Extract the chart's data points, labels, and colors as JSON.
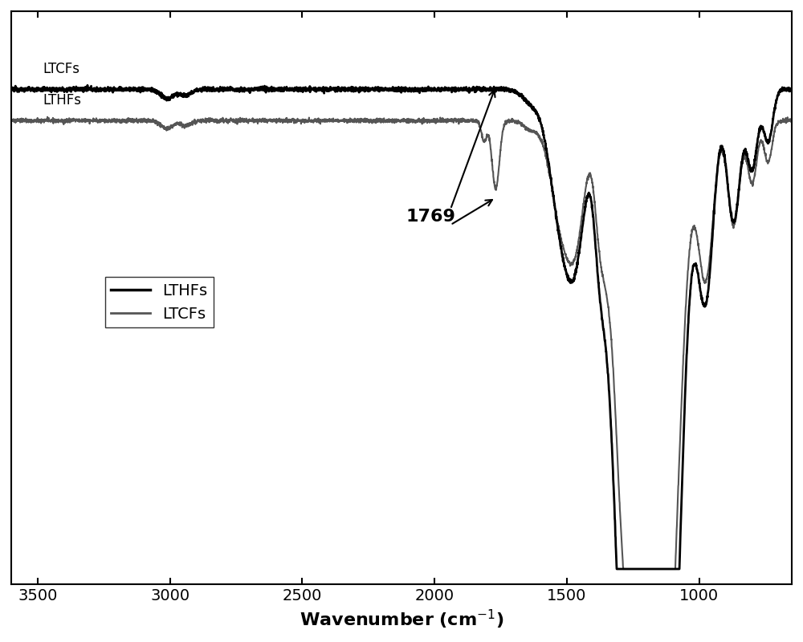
{
  "title": "",
  "xlabel": "Wavenumber (cm$^{-1}$)",
  "ylabel": "",
  "xlim": [
    3600,
    650
  ],
  "background_color": "#ffffff",
  "lthfs_color": "#000000",
  "ltcfs_color": "#555555",
  "lthfs_label": "LTHFs",
  "ltcfs_label": "LTCFs",
  "legend_lthfs": "LTHFs",
  "legend_ltcfs": "LTCFs",
  "annotation_text": "1769",
  "lthfs_linewidth": 2.0,
  "ltcfs_linewidth": 1.5,
  "xticks": [
    3500,
    3000,
    2500,
    2000,
    1500,
    1000
  ],
  "xlabel_fontsize": 16,
  "tick_fontsize": 14,
  "legend_fontsize": 14,
  "annotation_fontsize": 16
}
